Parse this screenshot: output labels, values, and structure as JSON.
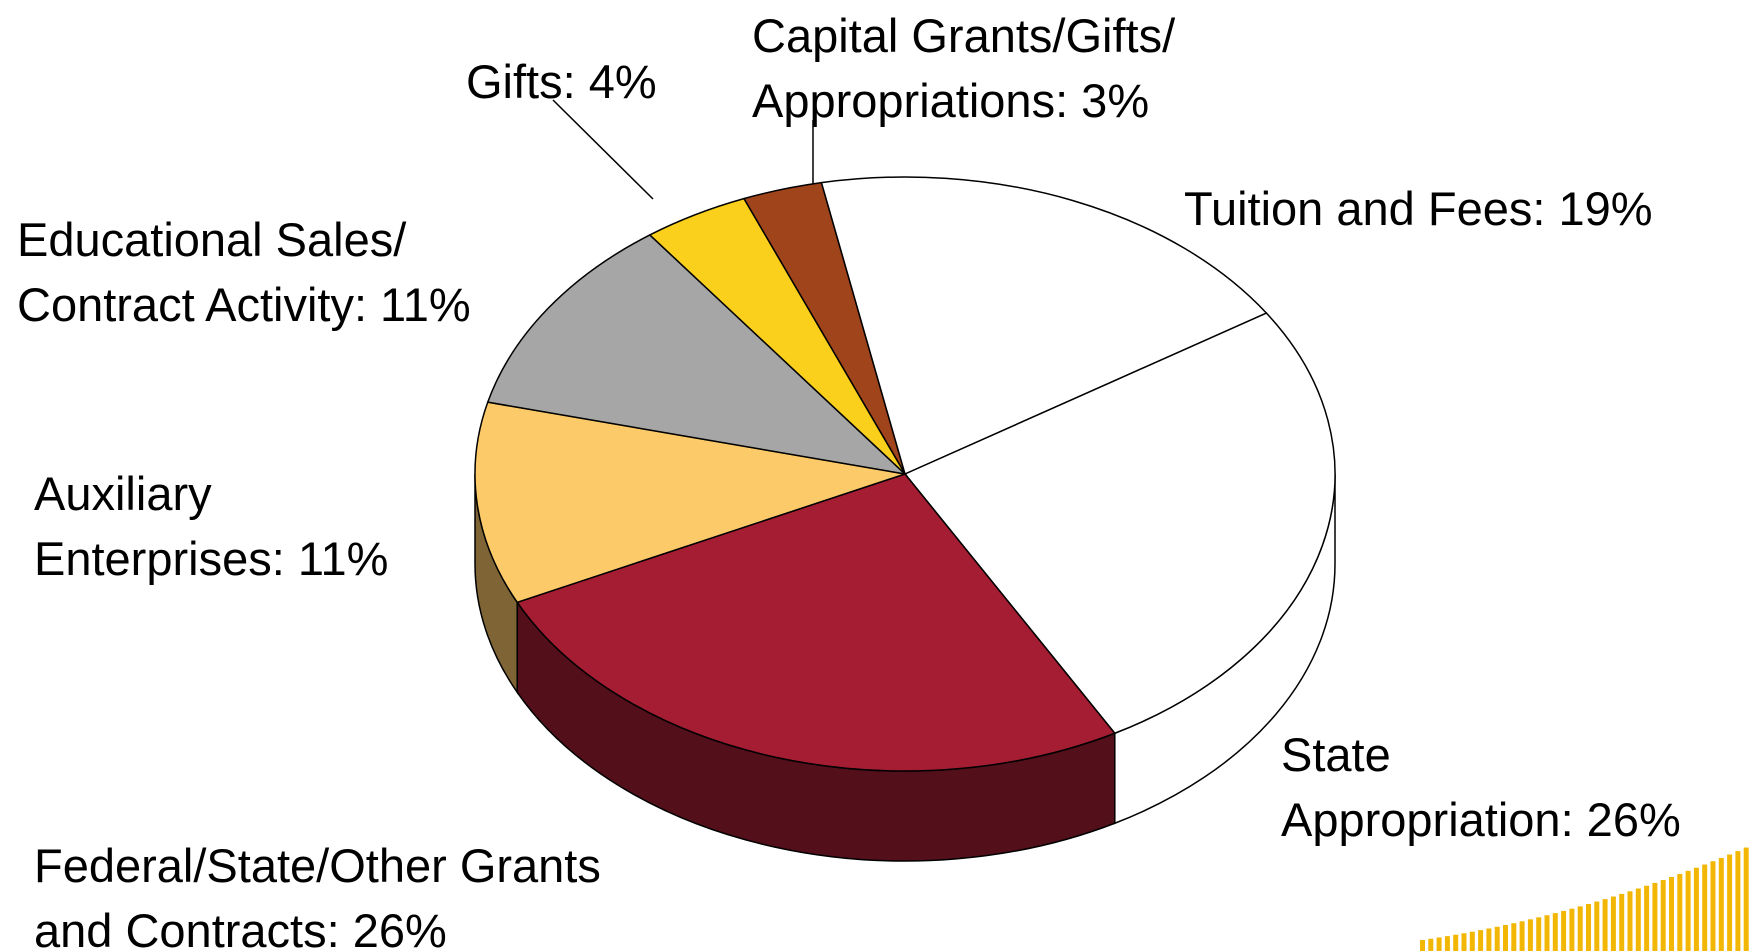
{
  "chart_data": {
    "type": "pie3d",
    "labels": [
      [
        "Capital Grants/Gifts/",
        "Appropriations: 3%"
      ],
      [
        "Tuition and Fees: 19%"
      ],
      [
        "State",
        "Appropriation: 26%"
      ],
      [
        "Federal/State/Other Grants",
        "and Contracts: 26%"
      ],
      [
        "Auxiliary",
        "Enterprises: 11%"
      ],
      [
        "Educational Sales/",
        "Contract Activity: 11%"
      ],
      [
        "Gifts: 4%"
      ]
    ],
    "values": [
      3,
      19,
      26,
      26,
      11,
      11,
      4
    ],
    "colors": [
      "#A0441C",
      "#FFFFFF",
      "#FFFFFF",
      "#A51D33",
      "#FDCA6A",
      "#A6A6A6",
      "#FBD01C"
    ]
  }
}
